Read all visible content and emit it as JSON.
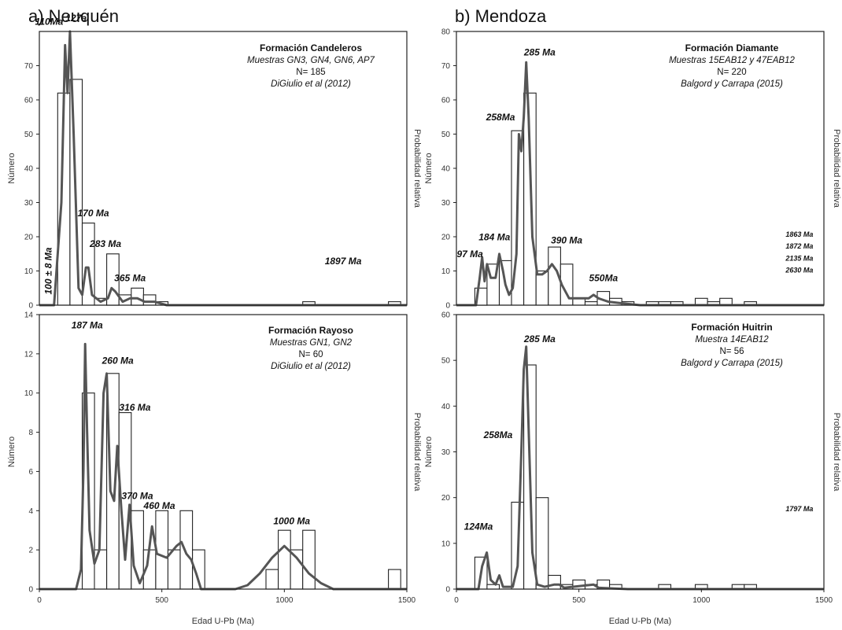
{
  "sections": {
    "a": "a) Neuquén",
    "b": "b) Mendoza"
  },
  "chart_data": [
    {
      "id": "candeleros",
      "type": "bar",
      "formation": "Formación Candeleros",
      "samples": "Muestras GN3, GN4, GN6, AP7",
      "n": "N= 185",
      "reference": "DiGiulio et al (2012)",
      "xlim": [
        0,
        1500
      ],
      "ylim": [
        0,
        80
      ],
      "yticks": [
        0,
        10,
        20,
        30,
        40,
        50,
        60,
        70
      ],
      "xticks": [],
      "ylabel": "Número",
      "y2label": "Probabilidad relativa",
      "bin_width": 50,
      "bars": [
        {
          "x": 100,
          "value": 62
        },
        {
          "x": 150,
          "value": 66
        },
        {
          "x": 200,
          "value": 24
        },
        {
          "x": 250,
          "value": 2
        },
        {
          "x": 300,
          "value": 15
        },
        {
          "x": 350,
          "value": 3
        },
        {
          "x": 400,
          "value": 5
        },
        {
          "x": 450,
          "value": 3
        },
        {
          "x": 500,
          "value": 1
        },
        {
          "x": 1100,
          "value": 1
        },
        {
          "x": 1450,
          "value": 1
        }
      ],
      "curve": [
        [
          0,
          0
        ],
        [
          60,
          0
        ],
        [
          90,
          30
        ],
        [
          105,
          76
        ],
        [
          115,
          62
        ],
        [
          125,
          80
        ],
        [
          140,
          50
        ],
        [
          160,
          5
        ],
        [
          175,
          3
        ],
        [
          190,
          11
        ],
        [
          200,
          11
        ],
        [
          215,
          3
        ],
        [
          250,
          1
        ],
        [
          280,
          2
        ],
        [
          295,
          5
        ],
        [
          310,
          4
        ],
        [
          340,
          1
        ],
        [
          370,
          2
        ],
        [
          400,
          2
        ],
        [
          430,
          1
        ],
        [
          470,
          1
        ],
        [
          520,
          0
        ],
        [
          1500,
          0
        ]
      ],
      "peak_labels": [
        {
          "text": "110Ma",
          "x": 40,
          "y": 82
        },
        {
          "text": "127a",
          "x": 150,
          "y": 83
        },
        {
          "text": "170 Ma",
          "x": 220,
          "y": 26
        },
        {
          "text": "283 Ma",
          "x": 270,
          "y": 17
        },
        {
          "text": "365 Ma",
          "x": 370,
          "y": 7
        },
        {
          "text": "1897 Ma",
          "x": 1240,
          "y": 12
        }
      ],
      "rotated_label": {
        "text": "100 ± 8 Ma",
        "x": 50,
        "y": 10
      }
    },
    {
      "id": "rayoso",
      "type": "bar",
      "formation": "Formación Rayoso",
      "samples": "Muestras GN1, GN2",
      "n": "N= 60",
      "reference": "DiGiulio et al (2012)",
      "xlim": [
        0,
        1500
      ],
      "ylim": [
        0,
        14
      ],
      "yticks": [
        0,
        2,
        4,
        6,
        8,
        10,
        12,
        14
      ],
      "xticks": [
        "0",
        "500",
        "1000",
        "1500"
      ],
      "xlabel": "Edad U-Pb (Ma)",
      "ylabel": "Número",
      "y2label": "Probabilidad relativa",
      "bin_width": 50,
      "bars": [
        {
          "x": 200,
          "value": 10
        },
        {
          "x": 250,
          "value": 2
        },
        {
          "x": 300,
          "value": 11
        },
        {
          "x": 350,
          "value": 9
        },
        {
          "x": 400,
          "value": 4
        },
        {
          "x": 450,
          "value": 2
        },
        {
          "x": 500,
          "value": 4
        },
        {
          "x": 550,
          "value": 2
        },
        {
          "x": 600,
          "value": 4
        },
        {
          "x": 650,
          "value": 2
        },
        {
          "x": 950,
          "value": 1
        },
        {
          "x": 1000,
          "value": 3
        },
        {
          "x": 1050,
          "value": 2
        },
        {
          "x": 1100,
          "value": 3
        },
        {
          "x": 1450,
          "value": 1
        }
      ],
      "curve": [
        [
          0,
          0
        ],
        [
          150,
          0
        ],
        [
          170,
          1
        ],
        [
          180,
          6
        ],
        [
          187,
          12.5
        ],
        [
          195,
          8
        ],
        [
          205,
          3
        ],
        [
          225,
          1.3
        ],
        [
          245,
          2
        ],
        [
          262,
          10
        ],
        [
          275,
          11
        ],
        [
          290,
          5
        ],
        [
          305,
          4.5
        ],
        [
          318,
          7.3
        ],
        [
          335,
          4
        ],
        [
          350,
          1.5
        ],
        [
          368,
          4.3
        ],
        [
          385,
          1.2
        ],
        [
          410,
          0.3
        ],
        [
          440,
          1.2
        ],
        [
          460,
          3.2
        ],
        [
          480,
          1.8
        ],
        [
          520,
          1.6
        ],
        [
          560,
          2.2
        ],
        [
          580,
          2.4
        ],
        [
          600,
          1.8
        ],
        [
          620,
          1.5
        ],
        [
          640,
          0.8
        ],
        [
          660,
          0
        ],
        [
          800,
          0
        ],
        [
          850,
          0.2
        ],
        [
          900,
          0.8
        ],
        [
          950,
          1.6
        ],
        [
          1000,
          2.2
        ],
        [
          1050,
          1.6
        ],
        [
          1100,
          0.8
        ],
        [
          1150,
          0.3
        ],
        [
          1200,
          0
        ],
        [
          1500,
          0
        ]
      ],
      "peak_labels": [
        {
          "text": "187 Ma",
          "x": 195,
          "y": 13.3
        },
        {
          "text": "260 Ma",
          "x": 320,
          "y": 11.5
        },
        {
          "text": "316 Ma",
          "x": 390,
          "y": 9.1
        },
        {
          "text": "370 Ma",
          "x": 400,
          "y": 4.6
        },
        {
          "text": "460 Ma",
          "x": 490,
          "y": 4.1
        },
        {
          "text": "1000 Ma",
          "x": 1030,
          "y": 3.3
        }
      ]
    },
    {
      "id": "diamante",
      "type": "bar",
      "formation": "Formación Diamante",
      "samples": "Muestras 15EAB12 y 47EAB12",
      "n": "N= 220",
      "reference": "Balgord y Carrapa (2015)",
      "xlim": [
        0,
        1500
      ],
      "ylim": [
        0,
        80
      ],
      "yticks": [
        0,
        10,
        20,
        30,
        40,
        50,
        60,
        70,
        80
      ],
      "xticks": [],
      "ylabel": "Número",
      "y2label": "Probabilidad relativa",
      "bin_width": 50,
      "bars": [
        {
          "x": 100,
          "value": 5
        },
        {
          "x": 150,
          "value": 12
        },
        {
          "x": 200,
          "value": 13
        },
        {
          "x": 250,
          "value": 51
        },
        {
          "x": 300,
          "value": 62
        },
        {
          "x": 350,
          "value": 10
        },
        {
          "x": 400,
          "value": 17
        },
        {
          "x": 450,
          "value": 12
        },
        {
          "x": 500,
          "value": 2
        },
        {
          "x": 550,
          "value": 1
        },
        {
          "x": 600,
          "value": 4
        },
        {
          "x": 650,
          "value": 2
        },
        {
          "x": 700,
          "value": 1
        },
        {
          "x": 800,
          "value": 1
        },
        {
          "x": 850,
          "value": 1
        },
        {
          "x": 900,
          "value": 1
        },
        {
          "x": 1000,
          "value": 2
        },
        {
          "x": 1050,
          "value": 1
        },
        {
          "x": 1100,
          "value": 2
        },
        {
          "x": 1200,
          "value": 1
        }
      ],
      "curve": [
        [
          0,
          0
        ],
        [
          80,
          0
        ],
        [
          95,
          8
        ],
        [
          105,
          14
        ],
        [
          115,
          7
        ],
        [
          125,
          12
        ],
        [
          140,
          8
        ],
        [
          160,
          8
        ],
        [
          175,
          15
        ],
        [
          190,
          10
        ],
        [
          200,
          6
        ],
        [
          215,
          3
        ],
        [
          230,
          5
        ],
        [
          245,
          15
        ],
        [
          255,
          50
        ],
        [
          265,
          45
        ],
        [
          275,
          55
        ],
        [
          285,
          71
        ],
        [
          295,
          55
        ],
        [
          310,
          20
        ],
        [
          330,
          9
        ],
        [
          350,
          9
        ],
        [
          370,
          10
        ],
        [
          390,
          12
        ],
        [
          410,
          10
        ],
        [
          430,
          6
        ],
        [
          460,
          2
        ],
        [
          500,
          2
        ],
        [
          540,
          2
        ],
        [
          560,
          3
        ],
        [
          580,
          2
        ],
        [
          620,
          1
        ],
        [
          680,
          0.5
        ],
        [
          750,
          0
        ],
        [
          1500,
          0
        ]
      ],
      "peak_labels": [
        {
          "text": "285 Ma",
          "x": 340,
          "y": 73
        },
        {
          "text": "258Ma",
          "x": 180,
          "y": 54
        },
        {
          "text": "184 Ma",
          "x": 155,
          "y": 19
        },
        {
          "text": "97 Ma",
          "x": 55,
          "y": 14
        },
        {
          "text": "390 Ma",
          "x": 450,
          "y": 18
        },
        {
          "text": "550Ma",
          "x": 600,
          "y": 7
        }
      ],
      "small_labels": [
        {
          "text": "1863 Ma",
          "x": 1400,
          "y": 20
        },
        {
          "text": "1872 Ma",
          "x": 1400,
          "y": 16.5
        },
        {
          "text": "2135 Ma",
          "x": 1400,
          "y": 13
        },
        {
          "text": "2630 Ma",
          "x": 1400,
          "y": 9.5
        }
      ]
    },
    {
      "id": "huitrin",
      "type": "bar",
      "formation": "Formación Huitrin",
      "samples": "Muestra 14EAB12",
      "n": "N= 56",
      "reference": "Balgord y Carrapa (2015)",
      "xlim": [
        0,
        1500
      ],
      "ylim": [
        0,
        60
      ],
      "yticks": [
        0,
        10,
        20,
        30,
        40,
        50,
        60
      ],
      "xticks": [
        "0",
        "500",
        "1000",
        "1500"
      ],
      "xlabel": "Edad U-Pb (Ma)",
      "ylabel": "Número",
      "y2label": "Probabilidad relativa",
      "bin_width": 50,
      "bars": [
        {
          "x": 100,
          "value": 7
        },
        {
          "x": 150,
          "value": 1
        },
        {
          "x": 250,
          "value": 19
        },
        {
          "x": 300,
          "value": 49
        },
        {
          "x": 350,
          "value": 20
        },
        {
          "x": 400,
          "value": 3
        },
        {
          "x": 450,
          "value": 1
        },
        {
          "x": 500,
          "value": 2
        },
        {
          "x": 550,
          "value": 1
        },
        {
          "x": 600,
          "value": 2
        },
        {
          "x": 650,
          "value": 1
        },
        {
          "x": 850,
          "value": 1
        },
        {
          "x": 1000,
          "value": 1
        },
        {
          "x": 1150,
          "value": 1
        },
        {
          "x": 1200,
          "value": 1
        }
      ],
      "curve": [
        [
          0,
          0
        ],
        [
          90,
          0
        ],
        [
          105,
          5
        ],
        [
          124,
          8
        ],
        [
          140,
          2
        ],
        [
          160,
          1
        ],
        [
          175,
          3
        ],
        [
          190,
          0.5
        ],
        [
          230,
          0.5
        ],
        [
          250,
          5
        ],
        [
          265,
          30
        ],
        [
          275,
          48
        ],
        [
          285,
          53
        ],
        [
          295,
          35
        ],
        [
          310,
          8
        ],
        [
          330,
          1
        ],
        [
          360,
          0.5
        ],
        [
          400,
          1
        ],
        [
          420,
          1
        ],
        [
          440,
          0.3
        ],
        [
          560,
          1
        ],
        [
          580,
          0.3
        ],
        [
          700,
          0
        ],
        [
          1500,
          0
        ]
      ],
      "peak_labels": [
        {
          "text": "285 Ma",
          "x": 340,
          "y": 54
        },
        {
          "text": "258Ma",
          "x": 170,
          "y": 33
        },
        {
          "text": "124Ma",
          "x": 90,
          "y": 13
        }
      ],
      "small_labels": [
        {
          "text": "1797 Ma",
          "x": 1400,
          "y": 17
        }
      ]
    }
  ]
}
